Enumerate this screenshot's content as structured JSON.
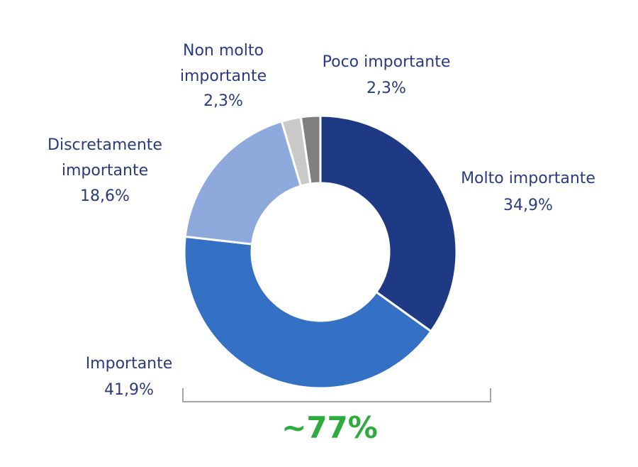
{
  "chart_data": {
    "type": "donut",
    "categories": [
      "Molto importante",
      "Importante",
      "Discretamente importante",
      "Non molto importante",
      "Poco importante"
    ],
    "values": [
      34.9,
      41.9,
      18.6,
      2.3,
      2.3
    ],
    "value_labels": [
      "34,9%",
      "41,9%",
      "18,6%",
      "2,3%",
      "2,3%"
    ],
    "colors": [
      "#1f3a84",
      "#3470c4",
      "#8eaadc",
      "#c9c9c9",
      "#7f7f7f"
    ],
    "annotation": "~77%"
  }
}
